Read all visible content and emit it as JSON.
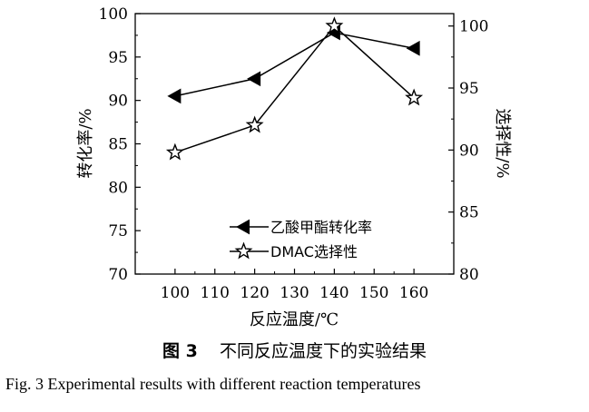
{
  "chart_data": {
    "type": "line",
    "x": [
      100,
      120,
      140,
      160
    ],
    "xlabel": "反应温度/℃",
    "xlim": [
      90,
      170
    ],
    "xticks": [
      100,
      110,
      120,
      130,
      140,
      150,
      160
    ],
    "ylabel_left": "转化率/%",
    "ylim_left": [
      70,
      100
    ],
    "yticks_left": [
      70,
      75,
      80,
      85,
      90,
      95,
      100
    ],
    "ylabel_right": "选择性/%",
    "ylim_right": [
      80,
      101
    ],
    "yticks_right": [
      80,
      85,
      90,
      95,
      100
    ],
    "series": [
      {
        "name": "乙酸甲酯转化率",
        "axis": "left",
        "marker": "triangle-left",
        "values": [
          90.5,
          92.5,
          97.8,
          96.0
        ]
      },
      {
        "name": "DMAC选择性",
        "axis": "right",
        "marker": "star-open",
        "values": [
          89.8,
          92.0,
          100.0,
          94.2
        ]
      }
    ],
    "legend_position": "lower-center"
  },
  "caption": {
    "figure_no": "图 3",
    "title_cn": "不同反应温度下的实验结果",
    "title_en": "Fig. 3    Experimental results with different reaction temperatures"
  }
}
